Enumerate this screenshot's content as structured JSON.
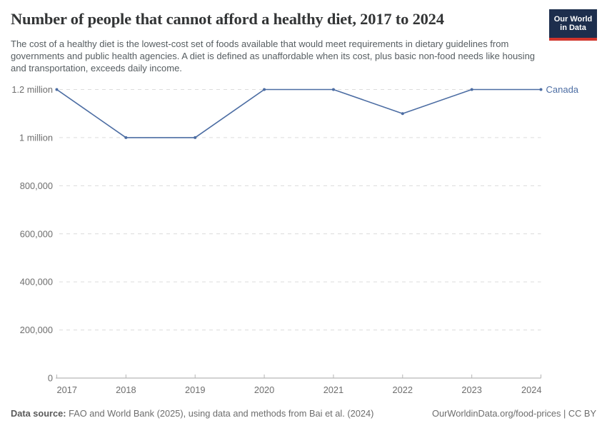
{
  "header": {
    "title": "Number of people that cannot afford a healthy diet, 2017 to 2024",
    "subtitle": "The cost of a healthy diet is the lowest-cost set of foods available that would meet requirements in dietary guidelines from governments and public health agencies. A diet is defined as unaffordable when its cost, plus basic non-food needs like housing and transportation, exceeds daily income."
  },
  "logo": {
    "line1": "Our World",
    "line2": "in Data",
    "bg_color": "#1d2e4d",
    "accent_color": "#d1352c"
  },
  "chart_data": {
    "type": "line",
    "title": "Number of people that cannot afford a healthy diet, 2017 to 2024",
    "x": [
      2017,
      2018,
      2019,
      2020,
      2021,
      2022,
      2023,
      2024
    ],
    "series": [
      {
        "name": "Canada",
        "values": [
          1200000,
          1000000,
          1000000,
          1200000,
          1200000,
          1100000,
          1200000,
          1200000
        ],
        "color": "#4c6da3"
      }
    ],
    "ylim": [
      0,
      1200000
    ],
    "yticks": [
      {
        "value": 0,
        "label": "0"
      },
      {
        "value": 200000,
        "label": "200,000"
      },
      {
        "value": 400000,
        "label": "400,000"
      },
      {
        "value": 600000,
        "label": "600,000"
      },
      {
        "value": 800000,
        "label": "800,000"
      },
      {
        "value": 1000000,
        "label": "1 million"
      },
      {
        "value": 1200000,
        "label": "1.2 million"
      }
    ],
    "grid": "horizontal-dashed",
    "legend_position": "end-of-line",
    "colors": {
      "grid": "#dcdcdc",
      "axis": "#a5a5a5",
      "tick": "#b5b5b5",
      "tick_label": "#6e6e6e"
    }
  },
  "footer": {
    "source_label": "Data source:",
    "source_text": " FAO and World Bank (2025), using data and methods from Bai et al. (2024)",
    "right_text": "OurWorldinData.org/food-prices | CC BY"
  }
}
